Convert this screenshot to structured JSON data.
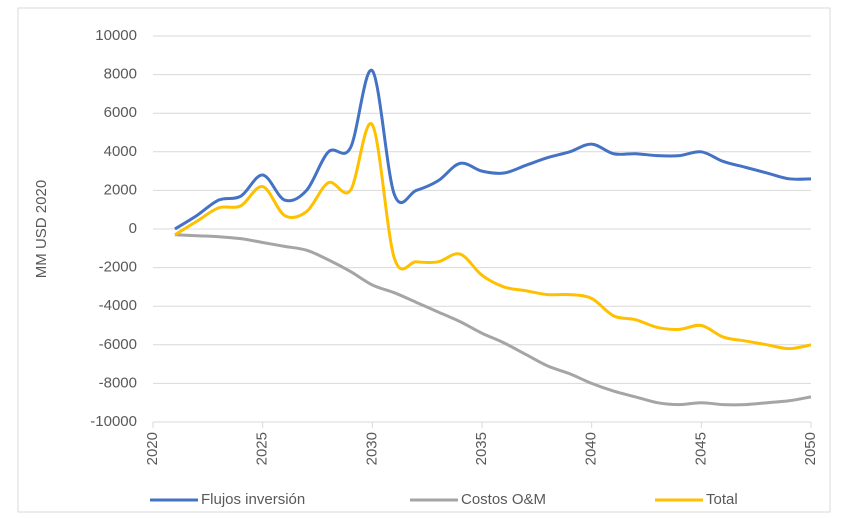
{
  "chart_data": {
    "type": "line",
    "y_label": "MM USD 2020",
    "x": [
      2021,
      2022,
      2023,
      2024,
      2025,
      2026,
      2027,
      2028,
      2029,
      2030,
      2031,
      2032,
      2033,
      2034,
      2035,
      2036,
      2037,
      2038,
      2039,
      2040,
      2041,
      2042,
      2043,
      2044,
      2045,
      2046,
      2047,
      2048,
      2049,
      2050
    ],
    "series": [
      {
        "name": "Flujos inversión",
        "color": "#4472c4",
        "values": [
          0,
          700,
          1500,
          1700,
          2800,
          1500,
          2000,
          4000,
          4200,
          8200,
          1800,
          2000,
          2500,
          3400,
          3000,
          2900,
          3300,
          3700,
          4000,
          4400,
          3900,
          3900,
          3800,
          3800,
          4000,
          3500,
          3200,
          2900,
          2600,
          2600
        ]
      },
      {
        "name": "Costos O&M",
        "color": "#a5a5a5",
        "values": [
          -300,
          -350,
          -400,
          -500,
          -700,
          -900,
          -1100,
          -1600,
          -2200,
          -2900,
          -3300,
          -3800,
          -4300,
          -4800,
          -5400,
          -5900,
          -6500,
          -7100,
          -7500,
          -8000,
          -8400,
          -8700,
          -9000,
          -9100,
          -9000,
          -9100,
          -9100,
          -9000,
          -8900,
          -8700
        ]
      },
      {
        "name": "Total",
        "color": "#ffc000",
        "values": [
          -300,
          400,
          1100,
          1200,
          2200,
          700,
          900,
          2400,
          2000,
          5400,
          -1500,
          -1700,
          -1700,
          -1300,
          -2400,
          -3000,
          -3200,
          -3400,
          -3400,
          -3600,
          -4500,
          -4700,
          -5100,
          -5200,
          -5000,
          -5600,
          -5800,
          -6000,
          -6200,
          -6000
        ]
      }
    ],
    "xlim": [
      2020,
      2050
    ],
    "xticks": [
      2020,
      2025,
      2030,
      2035,
      2040,
      2045,
      2050
    ],
    "ylim": [
      -10000,
      10000
    ],
    "yticks": [
      -10000,
      -8000,
      -6000,
      -4000,
      -2000,
      0,
      2000,
      4000,
      6000,
      8000,
      10000
    ],
    "grid": true,
    "legend": "bottom"
  }
}
